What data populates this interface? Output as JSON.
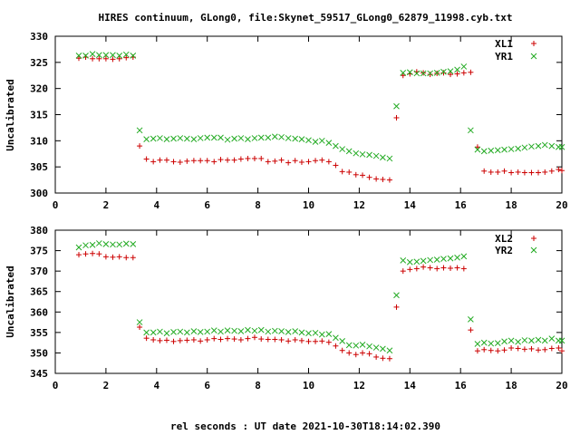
{
  "figure": {
    "title": "HIRES continuum, GLong0, file:Skynet_59517_GLong0_62879_11998.cyb.txt",
    "xlabel": "rel seconds : UT date 2021-10-30T18:14:02.390"
  },
  "colors": {
    "series1": "#cc0000",
    "series2": "#22aa22"
  },
  "chart_data": [
    {
      "type": "scatter",
      "ylabel": "Uncalibrated",
      "xlim": [
        0,
        20
      ],
      "ylim": [
        300,
        330
      ],
      "xticks": [
        0,
        2,
        4,
        6,
        8,
        10,
        12,
        14,
        16,
        18,
        20
      ],
      "yticks": [
        300,
        305,
        310,
        315,
        320,
        325,
        330
      ],
      "grid": false,
      "legend": "top-right",
      "series": [
        {
          "name": "XL1",
          "marker": "+",
          "color": "#cc0000",
          "x": [
            0.93,
            1.2,
            1.47,
            1.73,
            2.0,
            2.27,
            2.53,
            2.8,
            3.07,
            3.33,
            3.6,
            3.87,
            4.13,
            4.4,
            4.67,
            4.93,
            5.2,
            5.47,
            5.73,
            6.0,
            6.27,
            6.53,
            6.8,
            7.07,
            7.33,
            7.6,
            7.87,
            8.13,
            8.4,
            8.67,
            8.93,
            9.2,
            9.47,
            9.73,
            10.0,
            10.27,
            10.53,
            10.8,
            11.07,
            11.33,
            11.6,
            11.87,
            12.13,
            12.4,
            12.67,
            12.93,
            13.2,
            13.47,
            13.73,
            14.0,
            14.27,
            14.53,
            14.8,
            15.07,
            15.33,
            15.6,
            15.87,
            16.13,
            16.4,
            16.67,
            16.93,
            17.2,
            17.47,
            17.73,
            18.0,
            18.27,
            18.53,
            18.8,
            19.07,
            19.33,
            19.6,
            19.87,
            20.0
          ],
          "y": [
            325.8,
            326.0,
            325.7,
            325.7,
            325.7,
            325.6,
            325.7,
            325.9,
            326.0,
            309.0,
            306.5,
            306.0,
            306.3,
            306.3,
            306.0,
            305.9,
            306.1,
            306.2,
            306.2,
            306.2,
            306.0,
            306.4,
            306.3,
            306.3,
            306.5,
            306.6,
            306.6,
            306.6,
            306.0,
            306.1,
            306.3,
            305.8,
            306.2,
            305.9,
            306.0,
            306.2,
            306.3,
            306.0,
            305.3,
            304.1,
            304.0,
            303.5,
            303.4,
            303.0,
            302.7,
            302.6,
            302.5,
            314.4,
            322.5,
            322.8,
            323.2,
            323.0,
            322.7,
            322.9,
            323.0,
            322.7,
            322.8,
            323.0,
            323.1,
            308.8,
            304.2,
            304.0,
            304.0,
            304.2,
            303.9,
            304.0,
            303.9,
            303.9,
            303.9,
            304.0,
            304.2,
            304.5,
            304.3
          ]
        },
        {
          "name": "YR1",
          "marker": "x",
          "color": "#22aa22",
          "x": [
            0.93,
            1.2,
            1.47,
            1.73,
            2.0,
            2.27,
            2.53,
            2.8,
            3.07,
            3.33,
            3.6,
            3.87,
            4.13,
            4.4,
            4.67,
            4.93,
            5.2,
            5.47,
            5.73,
            6.0,
            6.27,
            6.53,
            6.8,
            7.07,
            7.33,
            7.6,
            7.87,
            8.13,
            8.4,
            8.67,
            8.93,
            9.2,
            9.47,
            9.73,
            10.0,
            10.27,
            10.53,
            10.8,
            11.07,
            11.33,
            11.6,
            11.87,
            12.13,
            12.4,
            12.67,
            12.93,
            13.2,
            13.47,
            13.73,
            14.0,
            14.27,
            14.53,
            14.8,
            15.07,
            15.33,
            15.6,
            15.87,
            16.13,
            16.4,
            16.67,
            16.93,
            17.2,
            17.47,
            17.73,
            18.0,
            18.27,
            18.53,
            18.8,
            19.07,
            19.33,
            19.6,
            19.87,
            20.0
          ],
          "y": [
            326.3,
            326.3,
            326.6,
            326.4,
            326.4,
            326.4,
            326.3,
            326.5,
            326.3,
            312.0,
            310.3,
            310.4,
            310.5,
            310.3,
            310.4,
            310.5,
            310.4,
            310.3,
            310.5,
            310.6,
            310.6,
            310.6,
            310.2,
            310.4,
            310.5,
            310.3,
            310.5,
            310.6,
            310.6,
            310.8,
            310.7,
            310.5,
            310.4,
            310.3,
            310.1,
            309.8,
            310.0,
            309.6,
            309.0,
            308.4,
            308.0,
            307.6,
            307.4,
            307.3,
            307.1,
            306.8,
            306.6,
            316.6,
            323.0,
            323.1,
            322.9,
            322.9,
            322.9,
            323.0,
            323.2,
            323.3,
            323.6,
            324.2,
            312.0,
            308.3,
            308.0,
            308.1,
            308.2,
            308.3,
            308.4,
            308.5,
            308.7,
            308.9,
            309.0,
            309.2,
            309.0,
            308.8,
            308.8
          ]
        }
      ]
    },
    {
      "type": "scatter",
      "ylabel": "Uncalibrated",
      "xlim": [
        0,
        20
      ],
      "ylim": [
        345,
        380
      ],
      "xticks": [
        0,
        2,
        4,
        6,
        8,
        10,
        12,
        14,
        16,
        18,
        20
      ],
      "yticks": [
        345,
        350,
        355,
        360,
        365,
        370,
        375,
        380
      ],
      "grid": false,
      "legend": "top-right",
      "series": [
        {
          "name": "XL2",
          "marker": "+",
          "color": "#cc0000",
          "x": [
            0.93,
            1.2,
            1.47,
            1.73,
            2.0,
            2.27,
            2.53,
            2.8,
            3.07,
            3.33,
            3.6,
            3.87,
            4.13,
            4.4,
            4.67,
            4.93,
            5.2,
            5.47,
            5.73,
            6.0,
            6.27,
            6.53,
            6.8,
            7.07,
            7.33,
            7.6,
            7.87,
            8.13,
            8.4,
            8.67,
            8.93,
            9.2,
            9.47,
            9.73,
            10.0,
            10.27,
            10.53,
            10.8,
            11.07,
            11.33,
            11.6,
            11.87,
            12.13,
            12.4,
            12.67,
            12.93,
            13.2,
            13.47,
            13.73,
            14.0,
            14.27,
            14.53,
            14.8,
            15.07,
            15.33,
            15.6,
            15.87,
            16.13,
            16.4,
            16.67,
            16.93,
            17.2,
            17.47,
            17.73,
            18.0,
            18.27,
            18.53,
            18.8,
            19.07,
            19.33,
            19.6,
            19.87,
            20.0
          ],
          "y": [
            374.0,
            374.2,
            374.3,
            374.2,
            373.5,
            373.4,
            373.5,
            373.3,
            373.3,
            356.3,
            353.6,
            353.2,
            353.0,
            353.1,
            352.8,
            353.0,
            353.1,
            353.2,
            352.9,
            353.2,
            353.5,
            353.3,
            353.5,
            353.4,
            353.2,
            353.5,
            353.8,
            353.4,
            353.3,
            353.3,
            353.2,
            352.9,
            353.2,
            353.0,
            352.8,
            352.8,
            352.9,
            352.6,
            351.7,
            350.6,
            350.0,
            349.6,
            350.0,
            349.8,
            349.0,
            348.7,
            348.6,
            361.2,
            370.0,
            370.4,
            370.6,
            371.0,
            370.8,
            370.6,
            370.8,
            370.7,
            370.8,
            370.6,
            355.6,
            350.5,
            350.8,
            350.6,
            350.5,
            350.7,
            351.2,
            351.1,
            350.9,
            351.0,
            350.7,
            350.8,
            351.1,
            351.2,
            350.5
          ]
        },
        {
          "name": "YR2",
          "marker": "x",
          "color": "#22aa22",
          "x": [
            0.93,
            1.2,
            1.47,
            1.73,
            2.0,
            2.27,
            2.53,
            2.8,
            3.07,
            3.33,
            3.6,
            3.87,
            4.13,
            4.4,
            4.67,
            4.93,
            5.2,
            5.47,
            5.73,
            6.0,
            6.27,
            6.53,
            6.8,
            7.07,
            7.33,
            7.6,
            7.87,
            8.13,
            8.4,
            8.67,
            8.93,
            9.2,
            9.47,
            9.73,
            10.0,
            10.27,
            10.53,
            10.8,
            11.07,
            11.33,
            11.6,
            11.87,
            12.13,
            12.4,
            12.67,
            12.93,
            13.2,
            13.47,
            13.73,
            14.0,
            14.27,
            14.53,
            14.8,
            15.07,
            15.33,
            15.6,
            15.87,
            16.13,
            16.4,
            16.67,
            16.93,
            17.2,
            17.47,
            17.73,
            18.0,
            18.27,
            18.53,
            18.8,
            19.07,
            19.33,
            19.6,
            19.87,
            20.0
          ],
          "y": [
            375.8,
            376.3,
            376.4,
            376.8,
            376.6,
            376.5,
            376.5,
            376.7,
            376.6,
            357.5,
            355.0,
            355.0,
            355.2,
            354.8,
            355.1,
            355.2,
            355.0,
            355.3,
            355.1,
            355.2,
            355.5,
            355.2,
            355.5,
            355.4,
            355.3,
            355.6,
            355.4,
            355.6,
            355.2,
            355.4,
            355.3,
            355.1,
            355.3,
            355.0,
            354.8,
            354.9,
            354.5,
            354.6,
            353.7,
            352.9,
            351.9,
            351.8,
            352.0,
            351.6,
            351.3,
            351.0,
            350.6,
            364.1,
            372.6,
            372.2,
            372.3,
            372.5,
            372.7,
            372.8,
            373.0,
            373.1,
            373.3,
            373.6,
            358.2,
            352.2,
            352.5,
            352.3,
            352.4,
            352.8,
            353.0,
            352.7,
            353.1,
            353.0,
            353.2,
            353.0,
            353.5,
            353.0,
            353.0
          ]
        }
      ]
    }
  ]
}
